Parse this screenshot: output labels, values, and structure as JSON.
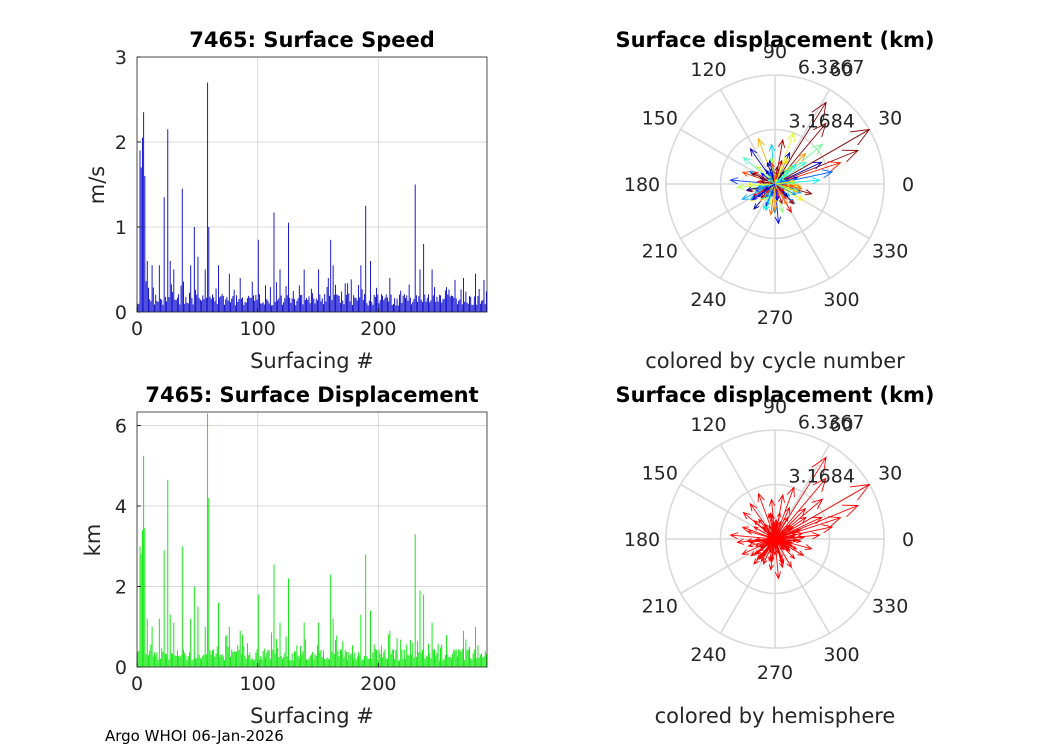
{
  "footer": "Argo WHOI 06-Jan-2026",
  "colors": {
    "speed": "#0000cc",
    "displacement": "#00e600",
    "hemisphere": "#ff0000",
    "grid": "#d9d9d9",
    "axis": "#262626"
  },
  "chart_data": [
    {
      "type": "bar",
      "title": "7465: Surface Speed",
      "xlabel": "Surfacing #",
      "ylabel": "m/s",
      "xlim": [
        0,
        290
      ],
      "ylim": [
        0,
        3
      ],
      "xticks": [
        "0",
        "100",
        "200"
      ],
      "yticks": [
        "0",
        "1",
        "2",
        "3"
      ],
      "grid": true,
      "n": 290,
      "color": "#0000cc",
      "peaks": [
        [
          2,
          1.9
        ],
        [
          3,
          1.7
        ],
        [
          4,
          2.05
        ],
        [
          5,
          2.35
        ],
        [
          6,
          1.6
        ],
        [
          8,
          0.6
        ],
        [
          12,
          0.55
        ],
        [
          18,
          0.55
        ],
        [
          22,
          1.35
        ],
        [
          25,
          2.15
        ],
        [
          27,
          0.6
        ],
        [
          30,
          0.5
        ],
        [
          37,
          1.45
        ],
        [
          44,
          0.55
        ],
        [
          47,
          1.0
        ],
        [
          50,
          0.65
        ],
        [
          56,
          0.5
        ],
        [
          58,
          2.7
        ],
        [
          59,
          1.0
        ],
        [
          67,
          0.55
        ],
        [
          76,
          0.45
        ],
        [
          85,
          0.4
        ],
        [
          100,
          0.85
        ],
        [
          115,
          0.35
        ],
        [
          113,
          1.17
        ],
        [
          118,
          0.5
        ],
        [
          125,
          1.05
        ],
        [
          138,
          0.5
        ],
        [
          150,
          0.5
        ],
        [
          158,
          0.4
        ],
        [
          160,
          0.85
        ],
        [
          162,
          0.55
        ],
        [
          185,
          0.55
        ],
        [
          189,
          1.25
        ],
        [
          193,
          0.6
        ],
        [
          209,
          0.4
        ],
        [
          230,
          1.5
        ],
        [
          234,
          0.5
        ],
        [
          237,
          0.8
        ],
        [
          244,
          0.5
        ],
        [
          270,
          0.4
        ],
        [
          280,
          0.45
        ]
      ]
    },
    {
      "type": "bar",
      "title": "7465: Surface Displacement",
      "xlabel": "Surfacing #",
      "ylabel": "km",
      "xlim": [
        0,
        290
      ],
      "ylim": [
        0,
        6.3367
      ],
      "xticks": [
        "0",
        "100",
        "200"
      ],
      "yticks": [
        "0",
        "2",
        "4",
        "6"
      ],
      "grid": true,
      "n": 290,
      "color": "#00e600",
      "peaks": [
        [
          2,
          3.0
        ],
        [
          3,
          2.8
        ],
        [
          4,
          3.4
        ],
        [
          5,
          5.25
        ],
        [
          6,
          3.45
        ],
        [
          8,
          1.2
        ],
        [
          12,
          1.0
        ],
        [
          18,
          1.2
        ],
        [
          22,
          2.9
        ],
        [
          25,
          4.65
        ],
        [
          27,
          1.3
        ],
        [
          30,
          1.1
        ],
        [
          37,
          3.0
        ],
        [
          44,
          1.2
        ],
        [
          47,
          2.0
        ],
        [
          50,
          1.5
        ],
        [
          56,
          1.0
        ],
        [
          58,
          6.3
        ],
        [
          59,
          4.2
        ],
        [
          67,
          1.6
        ],
        [
          76,
          1.0
        ],
        [
          85,
          0.9
        ],
        [
          100,
          1.8
        ],
        [
          113,
          2.55
        ],
        [
          118,
          1.1
        ],
        [
          125,
          2.2
        ],
        [
          138,
          1.1
        ],
        [
          150,
          1.1
        ],
        [
          160,
          2.3
        ],
        [
          162,
          1.2
        ],
        [
          185,
          1.3
        ],
        [
          189,
          2.8
        ],
        [
          193,
          1.4
        ],
        [
          209,
          0.9
        ],
        [
          230,
          3.3
        ],
        [
          234,
          1.9
        ],
        [
          237,
          1.8
        ],
        [
          244,
          1.1
        ],
        [
          270,
          0.9
        ],
        [
          280,
          1.0
        ]
      ]
    },
    {
      "type": "polar-compass",
      "title": "Surface displacement (km)",
      "subtitle": "colored by cycle number",
      "rmax": 6.3367,
      "rings": [
        3.1684,
        6.3367
      ],
      "ring_labels": [
        "3.1684",
        "6.3367"
      ],
      "angle_labels": [
        "0",
        "30",
        "60",
        "90",
        "120",
        "150",
        "180",
        "210",
        "240",
        "270",
        "300",
        "330"
      ],
      "coloring": "cycle",
      "arrows": [
        [
          30,
          6.3367
        ],
        [
          22,
          5.2
        ],
        [
          58,
          5.6
        ],
        [
          50,
          4.6
        ],
        [
          40,
          3.6
        ],
        [
          18,
          4.0
        ],
        [
          12,
          3.4
        ],
        [
          70,
          3.2
        ],
        [
          80,
          2.6
        ],
        [
          95,
          2.3
        ],
        [
          110,
          2.8
        ],
        [
          125,
          2.5
        ],
        [
          140,
          2.4
        ],
        [
          160,
          2.0
        ],
        [
          175,
          2.6
        ],
        [
          185,
          2.2
        ],
        [
          195,
          1.6
        ],
        [
          205,
          2.1
        ],
        [
          215,
          1.7
        ],
        [
          230,
          1.9
        ],
        [
          245,
          1.6
        ],
        [
          262,
          1.8
        ],
        [
          275,
          2.3
        ],
        [
          285,
          1.7
        ],
        [
          300,
          1.9
        ],
        [
          315,
          1.6
        ],
        [
          330,
          1.9
        ],
        [
          345,
          2.2
        ],
        [
          5,
          2.6
        ],
        [
          45,
          2.5
        ],
        [
          65,
          2.0
        ],
        [
          100,
          1.5
        ],
        [
          150,
          1.4
        ],
        [
          200,
          1.2
        ],
        [
          255,
          1.3
        ],
        [
          290,
          1.2
        ],
        [
          320,
          1.1
        ],
        [
          355,
          1.5
        ],
        [
          25,
          3.0
        ],
        [
          35,
          2.2
        ]
      ]
    },
    {
      "type": "polar-compass",
      "title": "Surface displacement (km)",
      "subtitle": "colored by hemisphere",
      "rmax": 6.3367,
      "rings": [
        3.1684,
        6.3367
      ],
      "ring_labels": [
        "3.1684",
        "6.3367"
      ],
      "angle_labels": [
        "0",
        "30",
        "60",
        "90",
        "120",
        "150",
        "180",
        "210",
        "240",
        "270",
        "300",
        "330"
      ],
      "coloring": "hemisphere",
      "arrows": [
        [
          30,
          6.3367
        ],
        [
          22,
          5.2
        ],
        [
          58,
          5.6
        ],
        [
          50,
          4.6
        ],
        [
          40,
          3.6
        ],
        [
          18,
          4.0
        ],
        [
          12,
          3.4
        ],
        [
          70,
          3.2
        ],
        [
          80,
          2.6
        ],
        [
          95,
          2.3
        ],
        [
          110,
          2.8
        ],
        [
          125,
          2.5
        ],
        [
          140,
          2.4
        ],
        [
          160,
          2.0
        ],
        [
          175,
          2.6
        ],
        [
          185,
          2.2
        ],
        [
          195,
          1.6
        ],
        [
          205,
          2.1
        ],
        [
          215,
          1.7
        ],
        [
          230,
          1.9
        ],
        [
          245,
          1.6
        ],
        [
          262,
          1.8
        ],
        [
          275,
          2.3
        ],
        [
          285,
          1.7
        ],
        [
          300,
          1.9
        ],
        [
          315,
          1.6
        ],
        [
          330,
          1.9
        ],
        [
          345,
          2.2
        ],
        [
          5,
          2.6
        ],
        [
          45,
          2.5
        ],
        [
          65,
          2.0
        ],
        [
          100,
          1.5
        ],
        [
          150,
          1.4
        ],
        [
          200,
          1.2
        ],
        [
          255,
          1.3
        ],
        [
          290,
          1.2
        ],
        [
          320,
          1.1
        ],
        [
          355,
          1.5
        ],
        [
          25,
          3.0
        ],
        [
          35,
          2.2
        ]
      ]
    }
  ]
}
